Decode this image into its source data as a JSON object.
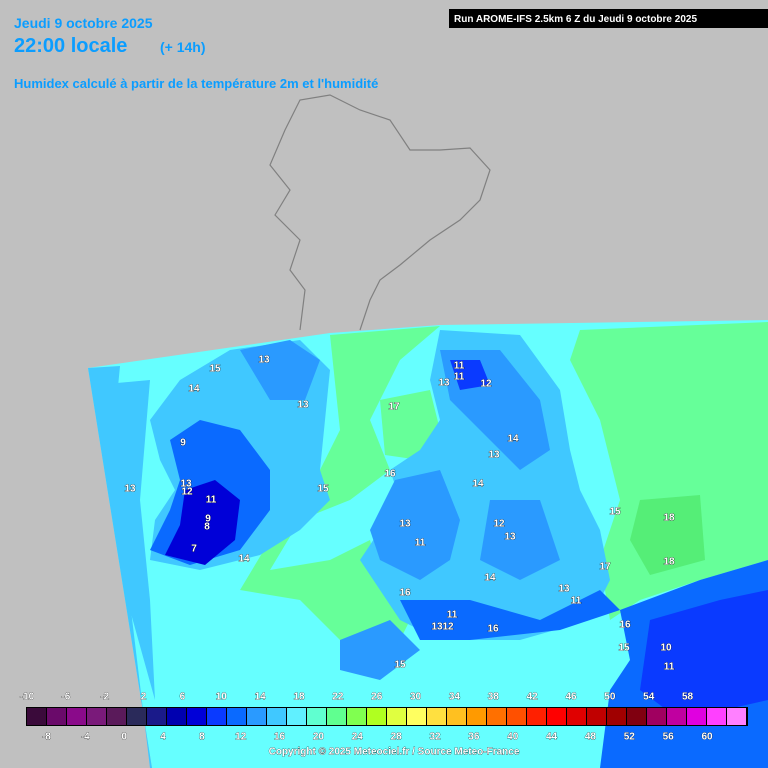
{
  "header": {
    "date": "Jeudi 9 octobre 2025",
    "time": "22:00 locale",
    "offset": "(+ 14h)",
    "subtitle": "Humidex calculé à partir de la température 2m et l'humidité",
    "run": "Run AROME-IFS 2.5km 6 Z du Jeudi 9 octobre 2025"
  },
  "map_labels": [
    "13",
    "15",
    "14",
    "13",
    "9",
    "13",
    "13",
    "12",
    "11",
    "9",
    "8",
    "7",
    "14",
    "15",
    "17",
    "11",
    "11",
    "13",
    "12",
    "14",
    "13",
    "14",
    "16",
    "13",
    "11",
    "12",
    "13",
    "15",
    "18",
    "18",
    "17",
    "14",
    "13",
    "11",
    "16",
    "11",
    "13",
    "12",
    "16",
    "15",
    "16",
    "15",
    "10",
    "11"
  ],
  "colorbar": {
    "top_labels": [
      -10,
      -6,
      -2,
      2,
      6,
      10,
      14,
      18,
      22,
      26,
      30,
      34,
      38,
      42,
      46,
      50,
      54,
      58
    ],
    "bottom_labels": [
      -8,
      -4,
      0,
      4,
      8,
      12,
      16,
      20,
      24,
      28,
      32,
      36,
      40,
      44,
      48,
      52,
      56,
      60
    ],
    "colors": [
      "#3a0a3a",
      "#6a0a6a",
      "#8a0a8a",
      "#7a1a7a",
      "#5a1a5a",
      "#2a2a5a",
      "#1a1a8a",
      "#0000b0",
      "#0000d8",
      "#0a3aff",
      "#0a6aff",
      "#2a9aff",
      "#40c8ff",
      "#60f0ff",
      "#60ffd0",
      "#60ff90",
      "#80ff50",
      "#b0ff20",
      "#e0ff40",
      "#ffff60",
      "#ffe040",
      "#ffc020",
      "#ff9a00",
      "#ff7000",
      "#ff5000",
      "#ff2000",
      "#ff0000",
      "#e00000",
      "#c00000",
      "#a00000",
      "#800010",
      "#a00060",
      "#c000a0",
      "#e000e0",
      "#ff40ff",
      "#ff80ff"
    ]
  },
  "copyright": "Copyright © 2025 Meteociel.fr / Source Meteo-France"
}
